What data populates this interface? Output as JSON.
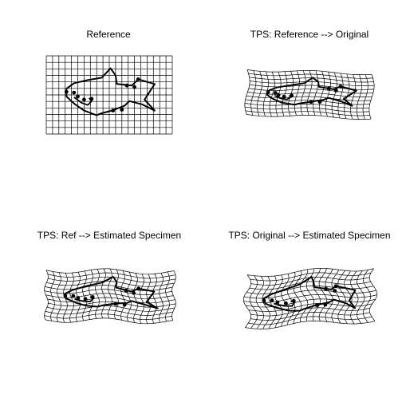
{
  "panels": [
    {
      "title": "Reference",
      "warp": "none"
    },
    {
      "title": "TPS: Reference --> Original",
      "warp": "tilt-shrink"
    },
    {
      "title": "TPS: Ref --> Estimated Specimen",
      "warp": "wavy"
    },
    {
      "title": "TPS: Original --> Estimated Specimen",
      "warp": "wavy-strong"
    }
  ],
  "grid": {
    "columns": 20,
    "rows": 12
  },
  "colors": {
    "background": "#ffffff",
    "ink": "#000000"
  }
}
